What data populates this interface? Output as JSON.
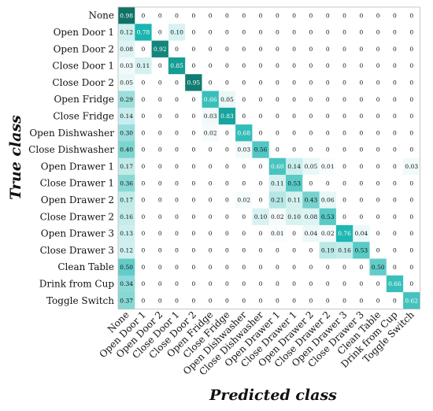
{
  "chart_data": {
    "type": "heatmap",
    "title": "",
    "xlabel": "Predicted class",
    "ylabel": "True class",
    "colormap": {
      "low": "#ffffff",
      "mid": "#1ab5b0",
      "high": "#0e6b5f"
    },
    "classes": [
      "None",
      "Open Door 1",
      "Open Door 2",
      "Close Door 1",
      "Close Door 2",
      "Open Fridge",
      "Close Fridge",
      "Open Dishwasher",
      "Close Dishwasher",
      "Open Drawer 1",
      "Close Drawer 1",
      "Open Drawer 2",
      "Close Drawer 2",
      "Open Drawer 3",
      "Close Drawer 3",
      "Clean Table",
      "Drink from Cup",
      "Toggle Switch"
    ],
    "matrix": [
      [
        "0.98",
        "0",
        "0",
        "0",
        "0",
        "0",
        "0",
        "0",
        "0",
        "0",
        "0",
        "0",
        "0",
        "0",
        "0",
        "0",
        "0",
        "0"
      ],
      [
        "0.12",
        "0.78",
        "0",
        "0.10",
        "0",
        "0",
        "0",
        "0",
        "0",
        "0",
        "0",
        "0",
        "0",
        "0",
        "0",
        "0",
        "0",
        "0"
      ],
      [
        "0.08",
        "0",
        "0.92",
        "0",
        "0",
        "0",
        "0",
        "0",
        "0",
        "0",
        "0",
        "0",
        "0",
        "0",
        "0",
        "0",
        "0",
        "0"
      ],
      [
        "0.03",
        "0.11",
        "0",
        "0.85",
        "0",
        "0",
        "0",
        "0",
        "0",
        "0",
        "0",
        "0",
        "0",
        "0",
        "0",
        "0",
        "0",
        "0"
      ],
      [
        "0.05",
        "0",
        "0",
        "0",
        "0.95",
        "0",
        "0",
        "0",
        "0",
        "0",
        "0",
        "0",
        "0",
        "0",
        "0",
        "0",
        "0",
        "0"
      ],
      [
        "0.29",
        "0",
        "0",
        "0",
        "0",
        "0.66",
        "0.05",
        "0",
        "0",
        "0",
        "0",
        "0",
        "0",
        "0",
        "0",
        "0",
        "0",
        "0"
      ],
      [
        "0.14",
        "0",
        "0",
        "0",
        "0",
        "0.03",
        "0.83",
        "0",
        "0",
        "0",
        "0",
        "0",
        "0",
        "0",
        "0",
        "0",
        "0",
        "0"
      ],
      [
        "0.30",
        "0",
        "0",
        "0",
        "0",
        "0.02",
        "0",
        "0.68",
        "0",
        "0",
        "0",
        "0",
        "0",
        "0",
        "0",
        "0",
        "0",
        "0"
      ],
      [
        "0.40",
        "0",
        "0",
        "0",
        "0",
        "0",
        "0",
        "0.03",
        "0.56",
        "0",
        "0",
        "0",
        "0",
        "0",
        "0",
        "0",
        "0",
        "0"
      ],
      [
        "0.17",
        "0",
        "0",
        "0",
        "0",
        "0",
        "0",
        "0",
        "0",
        "0.60",
        "0.14",
        "0.05",
        "0.01",
        "0",
        "0",
        "0",
        "0",
        "0.03"
      ],
      [
        "0.36",
        "0",
        "0",
        "0",
        "0",
        "0",
        "0",
        "0",
        "0",
        "0.11",
        "0.53",
        "0",
        "0",
        "0",
        "0",
        "0",
        "0",
        "0"
      ],
      [
        "0.17",
        "0",
        "0",
        "0",
        "0",
        "0",
        "0",
        "0.02",
        "0",
        "0.21",
        "0.11",
        "0.43",
        "0.06",
        "0",
        "0",
        "0",
        "0",
        "0"
      ],
      [
        "0.16",
        "0",
        "0",
        "0",
        "0",
        "0",
        "0",
        "0",
        "0.10",
        "0.02",
        "0.10",
        "0.08",
        "0.53",
        "0",
        "0",
        "0",
        "0",
        "0"
      ],
      [
        "0.13",
        "0",
        "0",
        "0",
        "0",
        "0",
        "0",
        "0",
        "0",
        "0.01",
        "0",
        "0.04",
        "0.02",
        "0.76",
        "0.04",
        "0",
        "0",
        "0"
      ],
      [
        "0.12",
        "0",
        "0",
        "0",
        "0",
        "0",
        "0",
        "0",
        "0",
        "0",
        "0",
        "0",
        "0.19",
        "0.16",
        "0.53",
        "0",
        "0",
        "0"
      ],
      [
        "0.50",
        "0",
        "0",
        "0",
        "0",
        "0",
        "0",
        "0",
        "0",
        "0",
        "0",
        "0",
        "0",
        "0",
        "0",
        "0.50",
        "0",
        "0"
      ],
      [
        "0.34",
        "0",
        "0",
        "0",
        "0",
        "0",
        "0",
        "0",
        "0",
        "0",
        "0",
        "0",
        "0",
        "0",
        "0",
        "0",
        "0.66",
        "0"
      ],
      [
        "0.37",
        "0",
        "0",
        "0",
        "0",
        "0",
        "0",
        "0",
        "0",
        "0",
        "0",
        "0",
        "0",
        "0",
        "0",
        "0",
        "0",
        "0.62"
      ]
    ]
  }
}
